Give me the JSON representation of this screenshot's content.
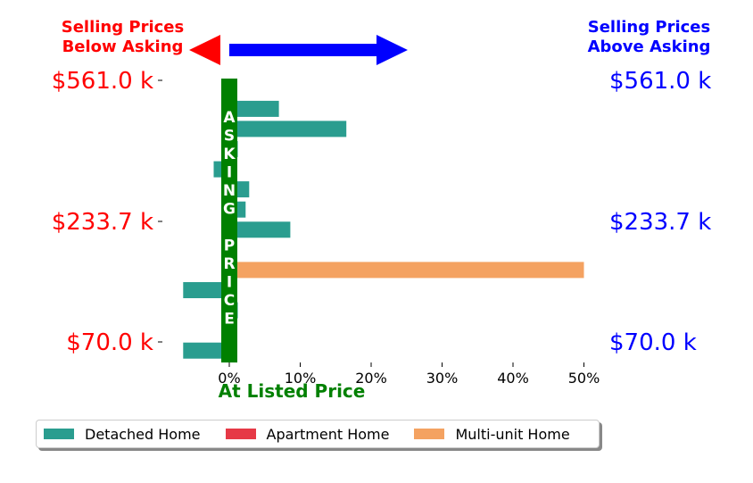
{
  "header": {
    "left_line1": "Selling Prices",
    "left_line2": "Below Asking",
    "right_line1": "Selling Prices",
    "right_line2": "Above Asking"
  },
  "colors": {
    "below": "#ff0000",
    "above": "#0000ff",
    "asking": "#008000",
    "detached": "#2a9d8f",
    "apartment": "#e63946",
    "multi_unit": "#f4a261"
  },
  "legend": [
    {
      "label": "Detached Home",
      "color": "#2a9d8f"
    },
    {
      "label": "Apartment Home",
      "color": "#e63946"
    },
    {
      "label": "Multi-unit Home",
      "color": "#f4a261"
    }
  ],
  "chart_data": {
    "type": "bar",
    "orientation": "horizontal",
    "xlabel": "At Listed Price",
    "x_ticks": [
      "0%",
      "10%",
      "20%",
      "30%",
      "40%",
      "50%"
    ],
    "x_tick_values": [
      0,
      10,
      20,
      30,
      40,
      50
    ],
    "xlim": [
      -7,
      52
    ],
    "asking_label": "ASKING PRICE",
    "y_labels_left": [
      "$561.0 k",
      "$233.7 k",
      "$70.0 k"
    ],
    "y_labels_right": [
      "$561.0 k",
      "$233.7 k",
      "$70.0 k"
    ],
    "y_label_prices": [
      561.0,
      233.7,
      70.0
    ],
    "price_slots": 14,
    "series": [
      {
        "name": "Detached Home",
        "color": "#2a9d8f",
        "points": [
          {
            "slot": 1,
            "value": 7.0
          },
          {
            "slot": 2,
            "value": 16.5
          },
          {
            "slot": 3,
            "value": 1.2
          },
          {
            "slot": 4,
            "value": -2.2
          },
          {
            "slot": 5,
            "value": 2.8
          },
          {
            "slot": 6,
            "value": 2.3
          },
          {
            "slot": 7,
            "value": 8.6
          },
          {
            "slot": 10,
            "value": -6.5
          },
          {
            "slot": 11,
            "value": 1.2
          },
          {
            "slot": 13,
            "value": -6.5
          }
        ]
      },
      {
        "name": "Apartment Home",
        "color": "#e63946",
        "points": []
      },
      {
        "name": "Multi-unit Home",
        "color": "#f4a261",
        "points": [
          {
            "slot": 9,
            "value": 50.0
          }
        ]
      }
    ]
  }
}
